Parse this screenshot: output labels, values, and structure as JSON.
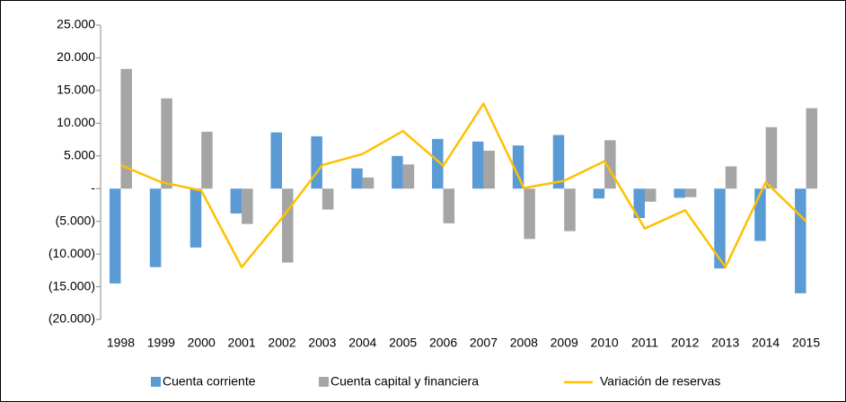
{
  "chart_data": {
    "type": "bar_line",
    "categories": [
      "1998",
      "1999",
      "2000",
      "2001",
      "2002",
      "2003",
      "2004",
      "2005",
      "2006",
      "2007",
      "2008",
      "2009",
      "2010",
      "2011",
      "2012",
      "2013",
      "2014",
      "2015"
    ],
    "series": [
      {
        "name": "Cuenta corriente",
        "color": "#5b9bd5",
        "type": "bar",
        "values": [
          -14500,
          -12000,
          -9000,
          -3800,
          8600,
          8000,
          3100,
          5000,
          7600,
          7200,
          6600,
          8200,
          -1500,
          -4500,
          -1400,
          -12200,
          -8000,
          -16000
        ]
      },
      {
        "name": "Cuenta capital y financiera",
        "color": "#a5a5a5",
        "type": "bar",
        "values": [
          18300,
          13800,
          8700,
          -5400,
          -11300,
          -3200,
          1700,
          3700,
          -5300,
          5800,
          -7700,
          -6500,
          7400,
          -2000,
          -1300,
          3400,
          9400,
          12300
        ]
      },
      {
        "name": "Variación de reservas",
        "color": "#ffc000",
        "type": "line",
        "values": [
          3600,
          1000,
          -300,
          -12000,
          -4500,
          3600,
          5300,
          8800,
          3500,
          13000,
          100,
          1200,
          4200,
          -6100,
          -3300,
          -12000,
          1000,
          -5000
        ]
      }
    ],
    "ylim": [
      -20000,
      25000
    ],
    "yticks": [
      {
        "value": -20000,
        "label": "(20.000)"
      },
      {
        "value": -15000,
        "label": "(15.000)"
      },
      {
        "value": -10000,
        "label": "(10.000)"
      },
      {
        "value": -5000,
        "label": "(5.000)"
      },
      {
        "value": 0,
        "label": "-"
      },
      {
        "value": 5000,
        "label": "5.000"
      },
      {
        "value": 10000,
        "label": "10.000"
      },
      {
        "value": 15000,
        "label": "15.000"
      },
      {
        "value": 20000,
        "label": "20.000"
      },
      {
        "value": 25000,
        "label": "25.000"
      }
    ],
    "legend": "bottom"
  }
}
